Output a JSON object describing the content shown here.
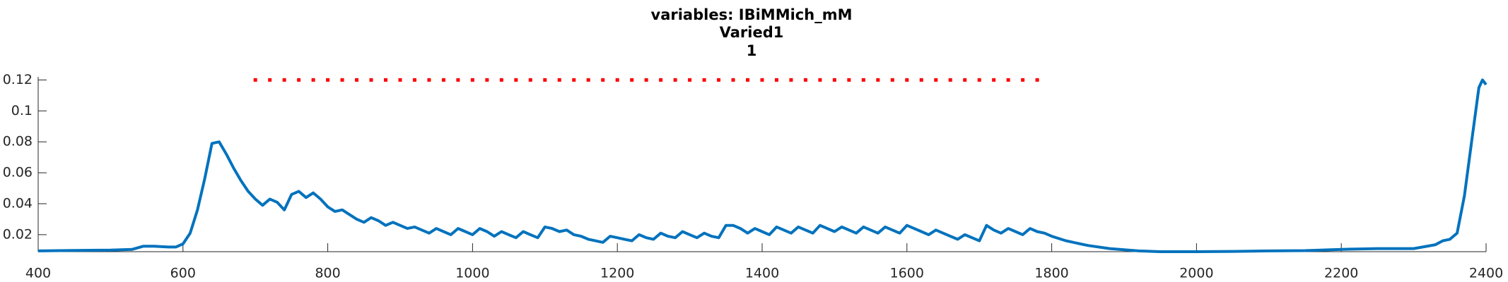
{
  "chart_data": {
    "type": "line",
    "title_lines": [
      "variables: IBiMMich_mM",
      "Varied1",
      "1"
    ],
    "xlim": [
      400,
      2400
    ],
    "xticks": [
      400,
      600,
      800,
      1000,
      1200,
      1400,
      1600,
      1800,
      2000,
      2200,
      2400
    ],
    "ylim": [
      0.009,
      0.122
    ],
    "yticks": [
      0.02,
      0.04,
      0.06,
      0.08,
      0.1,
      0.12
    ],
    "series": [
      {
        "style": "line",
        "color": "#0072BD",
        "x": [
          400,
          450,
          500,
          530,
          545,
          560,
          580,
          590,
          600,
          610,
          620,
          630,
          640,
          650,
          660,
          670,
          680,
          690,
          700,
          710,
          720,
          730,
          740,
          750,
          760,
          770,
          780,
          790,
          800,
          810,
          820,
          830,
          840,
          850,
          860,
          870,
          880,
          890,
          900,
          910,
          920,
          930,
          940,
          950,
          960,
          970,
          980,
          990,
          1000,
          1010,
          1020,
          1030,
          1040,
          1050,
          1060,
          1070,
          1080,
          1090,
          1100,
          1110,
          1120,
          1130,
          1140,
          1150,
          1160,
          1170,
          1180,
          1190,
          1200,
          1210,
          1220,
          1230,
          1240,
          1250,
          1260,
          1270,
          1280,
          1290,
          1300,
          1310,
          1320,
          1330,
          1340,
          1350,
          1360,
          1370,
          1380,
          1390,
          1400,
          1410,
          1420,
          1430,
          1440,
          1450,
          1460,
          1470,
          1480,
          1490,
          1500,
          1510,
          1520,
          1530,
          1540,
          1550,
          1560,
          1570,
          1580,
          1590,
          1600,
          1610,
          1620,
          1630,
          1640,
          1650,
          1660,
          1670,
          1680,
          1690,
          1700,
          1710,
          1720,
          1730,
          1740,
          1750,
          1760,
          1770,
          1780,
          1790,
          1800,
          1820,
          1850,
          1880,
          1920,
          1950,
          2000,
          2050,
          2100,
          2150,
          2200,
          2250,
          2300,
          2330,
          2340,
          2350,
          2360,
          2370,
          2380,
          2390,
          2395,
          2400
        ],
        "values": [
          0.0095,
          0.0098,
          0.01,
          0.0105,
          0.0125,
          0.0125,
          0.012,
          0.012,
          0.014,
          0.021,
          0.036,
          0.056,
          0.079,
          0.08,
          0.072,
          0.063,
          0.055,
          0.048,
          0.043,
          0.039,
          0.043,
          0.041,
          0.036,
          0.046,
          0.048,
          0.044,
          0.047,
          0.043,
          0.038,
          0.035,
          0.036,
          0.033,
          0.03,
          0.028,
          0.031,
          0.029,
          0.026,
          0.028,
          0.026,
          0.024,
          0.025,
          0.023,
          0.021,
          0.024,
          0.022,
          0.02,
          0.024,
          0.022,
          0.02,
          0.024,
          0.022,
          0.019,
          0.022,
          0.02,
          0.018,
          0.022,
          0.02,
          0.018,
          0.025,
          0.024,
          0.022,
          0.023,
          0.02,
          0.019,
          0.017,
          0.016,
          0.015,
          0.019,
          0.018,
          0.017,
          0.016,
          0.02,
          0.018,
          0.017,
          0.021,
          0.019,
          0.018,
          0.022,
          0.02,
          0.018,
          0.021,
          0.019,
          0.018,
          0.026,
          0.026,
          0.024,
          0.021,
          0.024,
          0.022,
          0.02,
          0.025,
          0.023,
          0.021,
          0.025,
          0.023,
          0.021,
          0.026,
          0.024,
          0.022,
          0.025,
          0.023,
          0.021,
          0.025,
          0.023,
          0.021,
          0.025,
          0.023,
          0.021,
          0.026,
          0.024,
          0.022,
          0.02,
          0.023,
          0.021,
          0.019,
          0.017,
          0.02,
          0.018,
          0.016,
          0.026,
          0.023,
          0.021,
          0.024,
          0.022,
          0.02,
          0.024,
          0.022,
          0.021,
          0.019,
          0.016,
          0.013,
          0.011,
          0.0095,
          0.009,
          0.009,
          0.0092,
          0.0095,
          0.0097,
          0.0105,
          0.011,
          0.011,
          0.0135,
          0.016,
          0.017,
          0.021,
          0.045,
          0.08,
          0.115,
          0.12,
          0.117
        ]
      },
      {
        "style": "markers",
        "color": "#ff0000",
        "x": [
          700,
          720,
          740,
          760,
          780,
          800,
          820,
          840,
          860,
          880,
          900,
          920,
          940,
          960,
          980,
          1000,
          1020,
          1040,
          1060,
          1080,
          1100,
          1120,
          1140,
          1160,
          1180,
          1200,
          1220,
          1240,
          1260,
          1280,
          1300,
          1320,
          1340,
          1360,
          1380,
          1400,
          1420,
          1440,
          1460,
          1480,
          1500,
          1520,
          1540,
          1560,
          1580,
          1600,
          1620,
          1640,
          1660,
          1680,
          1700,
          1720,
          1740,
          1760,
          1780
        ],
        "values": [
          0.12,
          0.12,
          0.12,
          0.12,
          0.12,
          0.12,
          0.12,
          0.12,
          0.12,
          0.12,
          0.12,
          0.12,
          0.12,
          0.12,
          0.12,
          0.12,
          0.12,
          0.12,
          0.12,
          0.12,
          0.12,
          0.12,
          0.12,
          0.12,
          0.12,
          0.12,
          0.12,
          0.12,
          0.12,
          0.12,
          0.12,
          0.12,
          0.12,
          0.12,
          0.12,
          0.12,
          0.12,
          0.12,
          0.12,
          0.12,
          0.12,
          0.12,
          0.12,
          0.12,
          0.12,
          0.12,
          0.12,
          0.12,
          0.12,
          0.12,
          0.12,
          0.12,
          0.12,
          0.12,
          0.12
        ]
      }
    ]
  }
}
